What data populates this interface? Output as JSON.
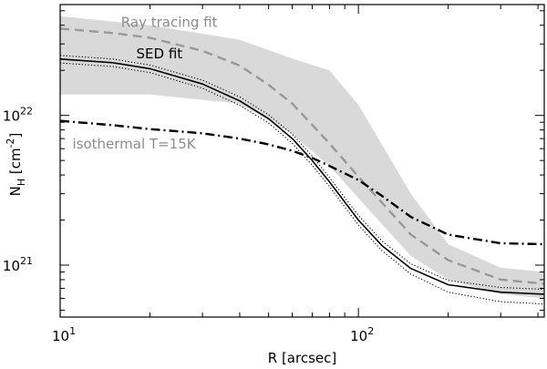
{
  "chart_data": {
    "type": "line",
    "xscale": "log",
    "yscale": "log",
    "xlim": [
      10,
      420
    ],
    "ylim": [
      4.5e+20,
      5.5e+22
    ],
    "xlabel": "R [arcsec]",
    "ylabel": "N_H [cm^-2]",
    "x_ticks": [
      {
        "value": 10,
        "base": "10",
        "exp": "1"
      },
      {
        "value": 100,
        "base": "10",
        "exp": "2"
      }
    ],
    "y_ticks": [
      {
        "value": 1e+21,
        "base": "10",
        "exp": "21"
      },
      {
        "value": 1e+22,
        "base": "10",
        "exp": "22"
      }
    ],
    "band": {
      "name": "Ray tracing fit uncertainty",
      "color": "#d9d9d9",
      "x": [
        10,
        20,
        40,
        60,
        80,
        100,
        150,
        200,
        300,
        420
      ],
      "upper": [
        4.6e+22,
        4e+22,
        3.2e+22,
        2.4e+22,
        2e+22,
        1.18e+22,
        3e+21,
        1.38e+21,
        9.6e+20,
        9e+20
      ],
      "lower": [
        1.38e+22,
        1.38e+22,
        1.2e+22,
        7.5e+21,
        4.6e+21,
        2.8e+21,
        1.15e+21,
        8e+20,
        6.4e+20,
        6e+20
      ]
    },
    "series": [
      {
        "name": "Ray tracing fit",
        "color": "#999999",
        "style": "dashed",
        "x": [
          10,
          15,
          20,
          30,
          40,
          50,
          60,
          80,
          100,
          150,
          200,
          300,
          420
        ],
        "y": [
          3.8e+22,
          3.55e+22,
          3.3e+22,
          2.7e+22,
          2.15e+22,
          1.6e+22,
          1.2e+22,
          6.5e+21,
          3.9e+21,
          1.6e+21,
          1.08e+21,
          8e+20,
          7.5e+20
        ]
      },
      {
        "name": "SED fit",
        "color": "#000000",
        "style": "solid",
        "x": [
          10,
          15,
          20,
          30,
          40,
          50,
          60,
          70,
          80,
          100,
          120,
          150,
          200,
          300,
          420
        ],
        "y": [
          2.38e+22,
          2.25e+22,
          2.05e+22,
          1.62e+22,
          1.25e+22,
          9.5e+21,
          7e+21,
          5e+21,
          3.6e+21,
          2e+21,
          1.35e+21,
          9.5e+20,
          7.4e+20,
          6.6e+20,
          6.4e+20
        ]
      },
      {
        "name": "SED fit upper",
        "color": "#000000",
        "style": "dotted",
        "x": [
          10,
          15,
          20,
          30,
          40,
          50,
          60,
          70,
          80,
          100,
          120,
          150,
          200,
          300,
          420
        ],
        "y": [
          2.52e+22,
          2.38e+22,
          2.17e+22,
          1.72e+22,
          1.33e+22,
          1.01e+22,
          7.5e+21,
          5.35e+21,
          3.85e+21,
          2.15e+21,
          1.45e+21,
          1.02e+21,
          7.9e+20,
          7.1e+20,
          6.9e+20
        ]
      },
      {
        "name": "SED fit lower",
        "color": "#000000",
        "style": "dotted",
        "x": [
          10,
          15,
          20,
          30,
          40,
          50,
          60,
          70,
          80,
          100,
          120,
          150,
          200,
          300,
          420
        ],
        "y": [
          2.24e+22,
          2.12e+22,
          1.93e+22,
          1.52e+22,
          1.17e+22,
          8.9e+21,
          6.5e+21,
          4.65e+21,
          3.35e+21,
          1.85e+21,
          1.25e+21,
          8.7e+20,
          6.6e+20,
          5.7e+20,
          5.5e+20
        ]
      },
      {
        "name": "isothermal T=15K",
        "color": "#000000",
        "style": "dashdot",
        "x": [
          10,
          15,
          20,
          30,
          40,
          50,
          60,
          70,
          80,
          100,
          120,
          150,
          200,
          300,
          420
        ],
        "y": [
          9.2e+21,
          8.6e+21,
          8.1e+21,
          7.6e+21,
          7e+21,
          6.4e+21,
          5.8e+21,
          5.2e+21,
          4.6e+21,
          3.7e+21,
          2.9e+21,
          2.1e+21,
          1.6e+21,
          1.4e+21,
          1.38e+21
        ]
      }
    ],
    "annotations": [
      {
        "text": "Ray tracing fit",
        "color": "#8c8c8c",
        "x": 16,
        "y": 3.9e+22
      },
      {
        "text": "SED fit",
        "color": "#000000",
        "x": 18,
        "y": 2.4e+22
      },
      {
        "text": "isothermal T=15K",
        "color": "#8c8c8c",
        "x": 11,
        "y": 6e+21
      }
    ]
  }
}
